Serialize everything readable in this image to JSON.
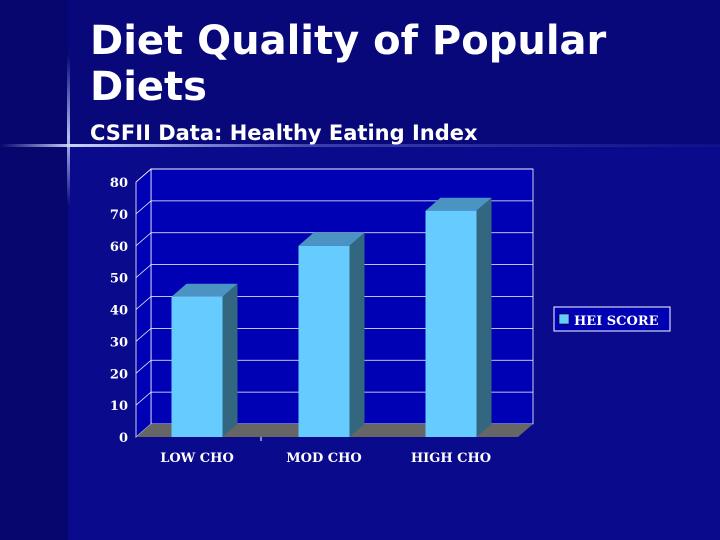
{
  "slide": {
    "title_line1": "Diet Quality of Popular",
    "title_line2": "Diets",
    "subtitle": "CSFII Data: Healthy Eating Index"
  },
  "colors": {
    "bar_front": "#66ccff",
    "bar_side": "#33667f",
    "bar_top": "#4a93c2",
    "floor": "#666666"
  },
  "chart_data": {
    "type": "bar",
    "categories": [
      "LOW CHO",
      "MOD CHO",
      "HIGH CHO"
    ],
    "series": [
      {
        "name": "HEI SCORE",
        "values": [
          44,
          60,
          71
        ]
      }
    ],
    "ylim": [
      0,
      80
    ],
    "yticks": [
      0,
      10,
      20,
      30,
      40,
      50,
      60,
      70,
      80
    ],
    "title": "",
    "xlabel": "",
    "ylabel": "",
    "grid": true,
    "legend": "right"
  }
}
